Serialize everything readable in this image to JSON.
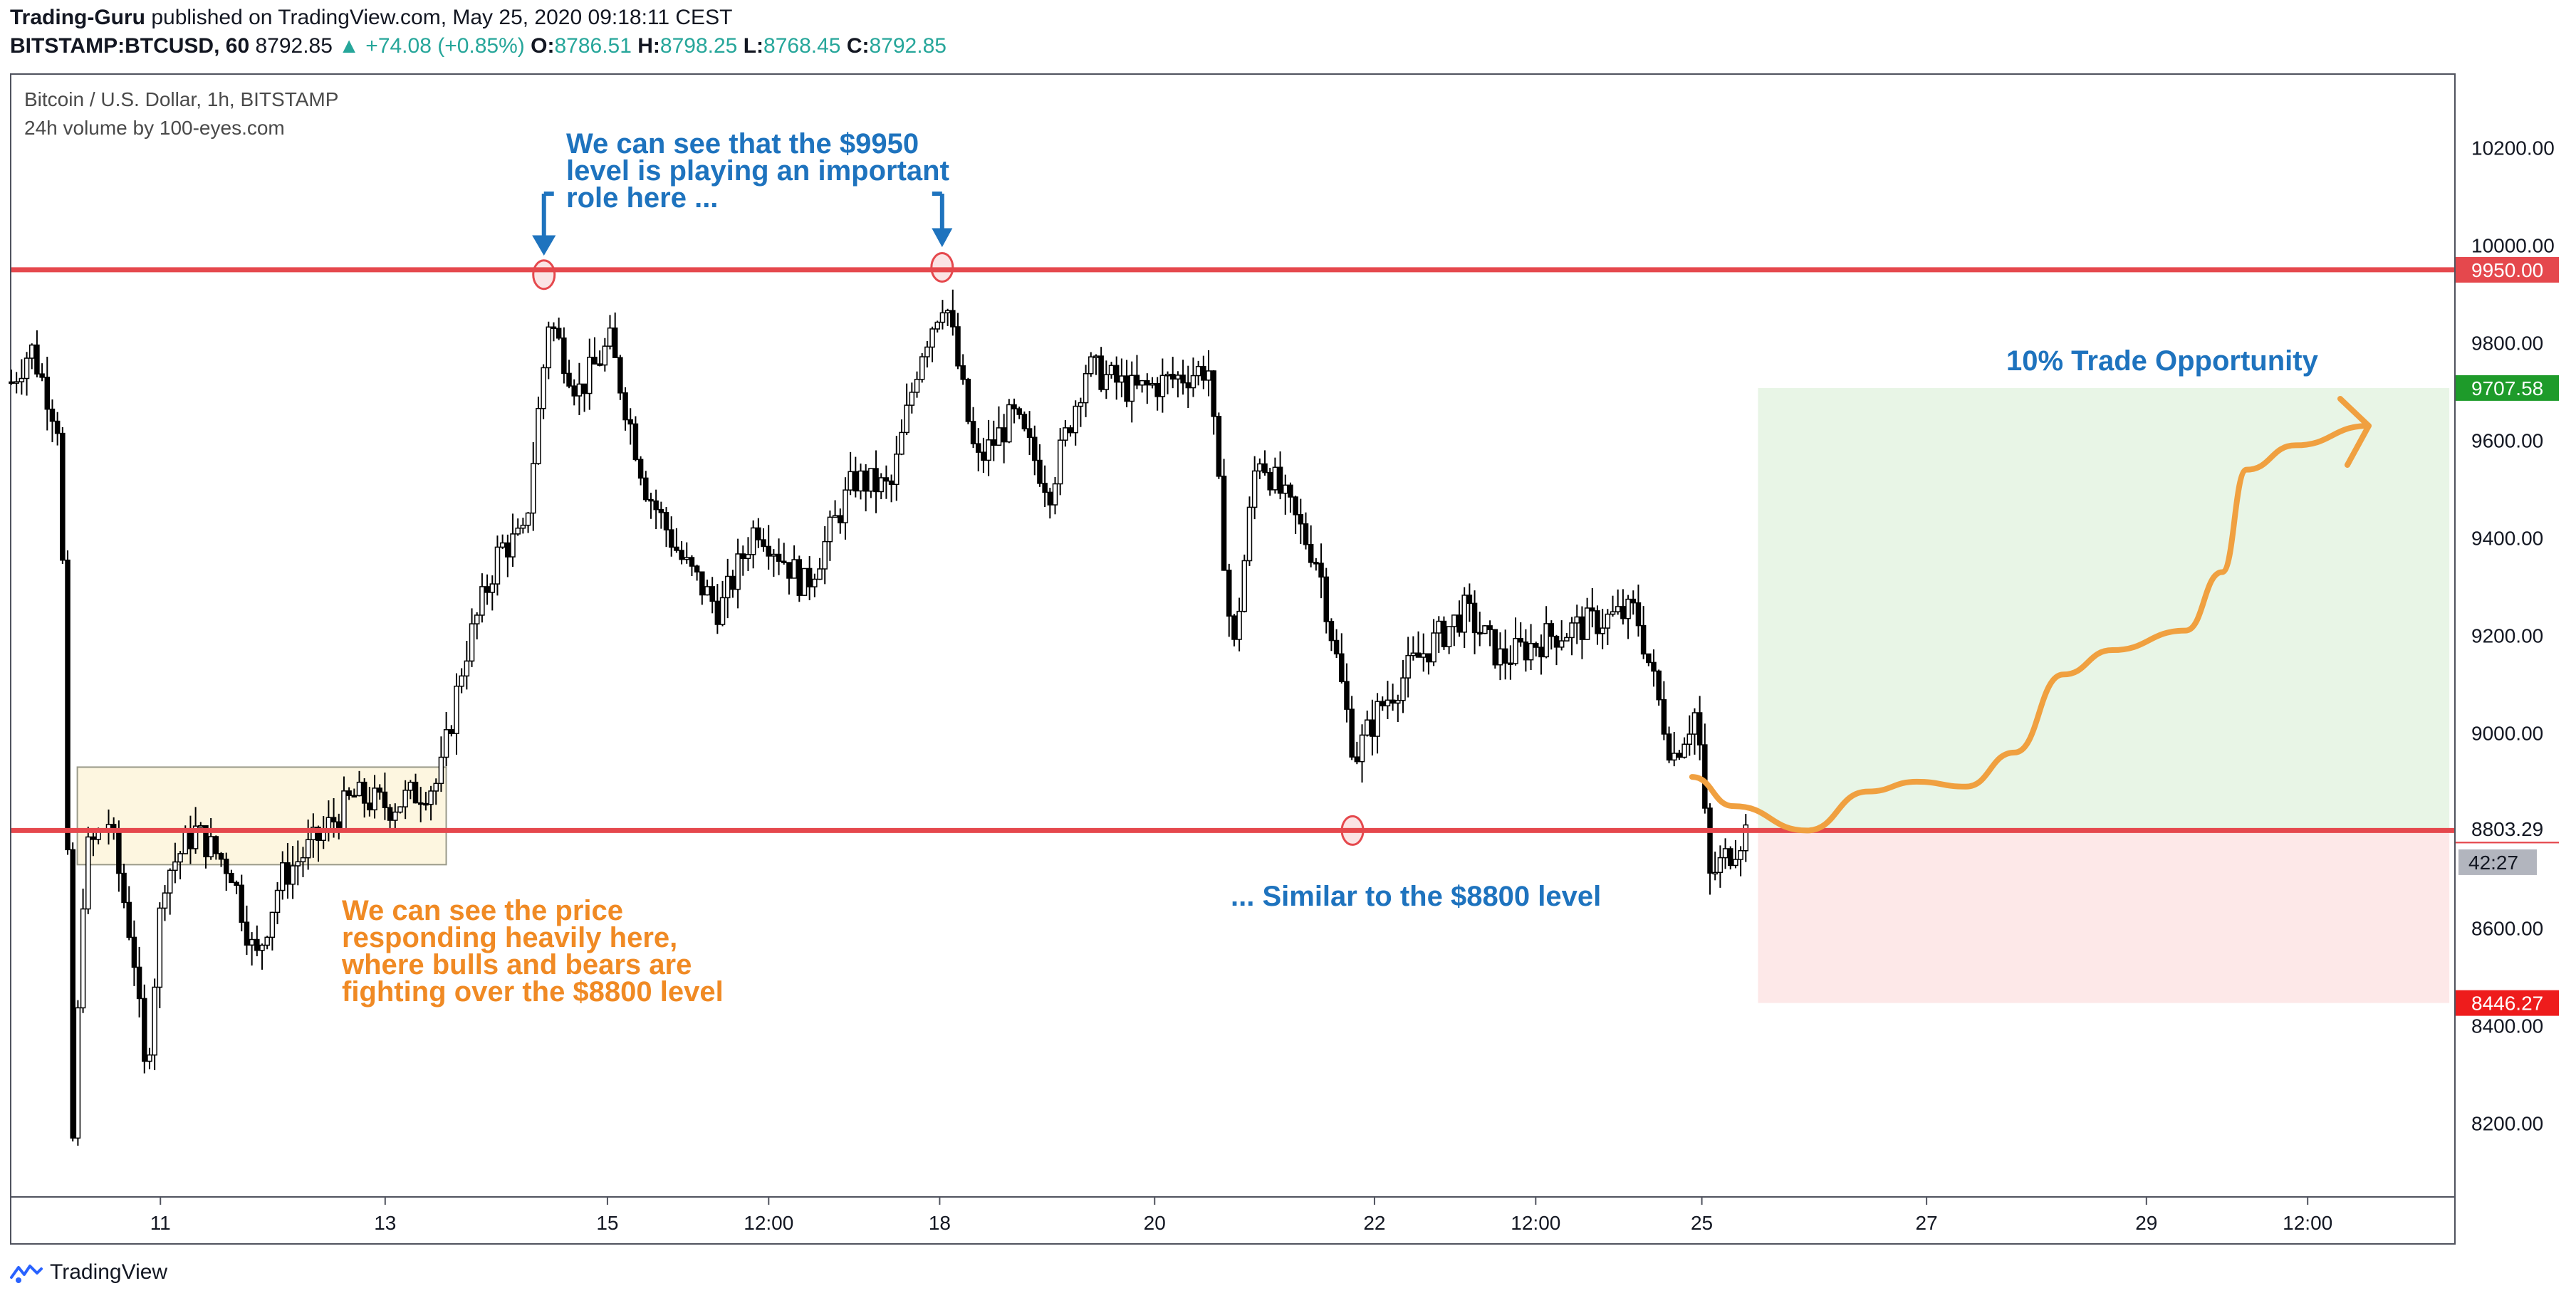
{
  "header": {
    "author": "Trading-Guru",
    "published_text": " published on TradingView.com, May 25, 2020 09:18:11 CEST",
    "symbol": "BITSTAMP:BTCUSD, 60",
    "last": "8792.85",
    "change": "▲ +74.08 (+0.85%)",
    "o_label": "O:",
    "o_value": "8786.51",
    "h_label": "H:",
    "h_value": "8798.25",
    "l_label": "L:",
    "l_value": "8768.45",
    "c_label": "C:",
    "c_value": "8792.85"
  },
  "pane": {
    "title": "Bitcoin / U.S. Dollar, 1h, BITSTAMP",
    "subtitle": "24h volume by 100-eyes.com"
  },
  "footer": {
    "brand": "TradingView"
  },
  "colors": {
    "resistance_line": "#e5484d",
    "annotation_blue": "#1e73be",
    "annotation_orange": "#f08a24",
    "projection": "#f0a040",
    "profit_zone": "#e8f5e6",
    "loss_zone": "#fde8e8",
    "consolidation_box": "#fdf6e0",
    "candle": "#000000",
    "target_badge": "#1e9b2a",
    "stop_badge": "#ee1c1c"
  },
  "chart_data": {
    "type": "candlestick",
    "title": "Bitcoin / U.S. Dollar, 1h, BITSTAMP",
    "ylim": [
      8050,
      10350
    ],
    "y_ticks": [
      "10200.00",
      "10000.00",
      "9800.00",
      "9600.00",
      "9400.00",
      "9200.00",
      "9000.00",
      "8600.00",
      "8400.00",
      "8200.00"
    ],
    "y_tick_values": [
      10200,
      10000,
      9800,
      9600,
      9400,
      9200,
      9000,
      8600,
      8400,
      8200
    ],
    "x_ticks": [
      "11",
      "13",
      "15",
      "12:00",
      "18",
      "20",
      "22",
      "12:00",
      "25",
      "27",
      "29",
      "12:00"
    ],
    "x_tick_positions": [
      0.061,
      0.153,
      0.244,
      0.31,
      0.38,
      0.468,
      0.558,
      0.624,
      0.692,
      0.784,
      0.874,
      0.94
    ],
    "price_path": [
      [
        0.0,
        9720
      ],
      [
        0.008,
        9790
      ],
      [
        0.02,
        9620
      ],
      [
        0.025,
        8150
      ],
      [
        0.03,
        8750
      ],
      [
        0.04,
        8820
      ],
      [
        0.05,
        8550
      ],
      [
        0.055,
        8280
      ],
      [
        0.062,
        8700
      ],
      [
        0.075,
        8800
      ],
      [
        0.09,
        8720
      ],
      [
        0.1,
        8530
      ],
      [
        0.11,
        8700
      ],
      [
        0.125,
        8780
      ],
      [
        0.14,
        8870
      ],
      [
        0.155,
        8850
      ],
      [
        0.175,
        8900
      ],
      [
        0.185,
        9150
      ],
      [
        0.2,
        9380
      ],
      [
        0.21,
        9400
      ],
      [
        0.22,
        9850
      ],
      [
        0.232,
        9700
      ],
      [
        0.245,
        9800
      ],
      [
        0.26,
        9500
      ],
      [
        0.275,
        9350
      ],
      [
        0.29,
        9250
      ],
      [
        0.305,
        9430
      ],
      [
        0.325,
        9300
      ],
      [
        0.345,
        9520
      ],
      [
        0.36,
        9500
      ],
      [
        0.372,
        9780
      ],
      [
        0.382,
        9900
      ],
      [
        0.395,
        9550
      ],
      [
        0.41,
        9650
      ],
      [
        0.425,
        9500
      ],
      [
        0.44,
        9750
      ],
      [
        0.46,
        9700
      ],
      [
        0.49,
        9750
      ],
      [
        0.5,
        9150
      ],
      [
        0.51,
        9580
      ],
      [
        0.535,
        9350
      ],
      [
        0.55,
        8950
      ],
      [
        0.56,
        9050
      ],
      [
        0.575,
        9150
      ],
      [
        0.595,
        9250
      ],
      [
        0.61,
        9150
      ],
      [
        0.63,
        9200
      ],
      [
        0.65,
        9230
      ],
      [
        0.665,
        9250
      ],
      [
        0.68,
        8950
      ],
      [
        0.69,
        9050
      ],
      [
        0.695,
        8700
      ],
      [
        0.71,
        8800
      ]
    ],
    "horizontal_levels": [
      {
        "label": "9950.00",
        "value": 9950
      },
      {
        "label": "8800.00",
        "value": 8800
      }
    ],
    "price_labels": [
      {
        "label": "9707.58",
        "value": 9707.58,
        "kind": "target"
      },
      {
        "label": "8803.29",
        "value": 8803.29,
        "kind": "last"
      },
      {
        "label": "42:27",
        "value": 8735,
        "kind": "countdown"
      },
      {
        "label": "8446.27",
        "value": 8446.27,
        "kind": "stop"
      }
    ],
    "position_tool": {
      "x_start": 0.715,
      "x_end": 0.998,
      "entry": 8803.29,
      "target": 9707.58,
      "stop": 8446.27
    },
    "consolidation_box": {
      "x_start": 0.027,
      "x_end": 0.178,
      "top": 8930,
      "bottom": 8730
    },
    "touch_markers": [
      {
        "x": 0.218,
        "y": 9940
      },
      {
        "x": 0.381,
        "y": 9955
      },
      {
        "x": 0.549,
        "y": 8800
      }
    ],
    "projection_path": [
      [
        0.688,
        8910
      ],
      [
        0.705,
        8850
      ],
      [
        0.735,
        8800
      ],
      [
        0.76,
        8880
      ],
      [
        0.78,
        8900
      ],
      [
        0.8,
        8890
      ],
      [
        0.82,
        8960
      ],
      [
        0.84,
        9120
      ],
      [
        0.86,
        9170
      ],
      [
        0.89,
        9210
      ],
      [
        0.905,
        9330
      ],
      [
        0.915,
        9540
      ],
      [
        0.935,
        9590
      ],
      [
        0.965,
        9630
      ]
    ],
    "annotations": [
      {
        "text": "We can see that the $9950",
        "color": "blue"
      },
      {
        "text": "level is playing an important",
        "color": "blue"
      },
      {
        "text": "role here  ...",
        "color": "blue"
      },
      {
        "text": "We can see the price",
        "color": "orange"
      },
      {
        "text": "responding heavily here,",
        "color": "orange"
      },
      {
        "text": "where bulls and bears are",
        "color": "orange"
      },
      {
        "text": "fighting over the $8800 level",
        "color": "orange"
      },
      {
        "text": "... Similar to the $8800 level",
        "color": "blue"
      },
      {
        "text": "10% Trade Opportunity",
        "color": "blue"
      }
    ]
  }
}
